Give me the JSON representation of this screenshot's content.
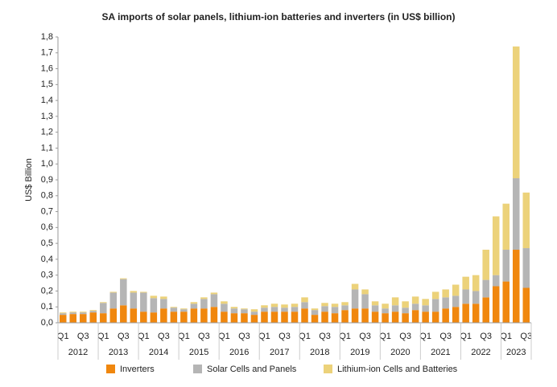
{
  "chart_data": {
    "type": "stacked_bar",
    "title": "SA imports of solar panels, lithium-ion batteries and inverters (in US$ billion)",
    "y_label": "US$ Billion",
    "categories": [
      "Q1",
      null,
      "Q3",
      null,
      "Q1",
      null,
      "Q3",
      null,
      "Q1",
      null,
      "Q3",
      null,
      "Q1",
      null,
      "Q3",
      null,
      "Q1",
      null,
      "Q3",
      null,
      "Q1",
      null,
      "Q3",
      null,
      "Q1",
      null,
      "Q3",
      null,
      "Q1",
      null,
      "Q3",
      null,
      "Q1",
      null,
      "Q3",
      null,
      "Q1",
      null,
      "Q3",
      null,
      "Q1",
      null,
      "Q3",
      null,
      "Q1",
      null,
      "Q3"
    ],
    "years": [
      "2012",
      "2013",
      "2014",
      "2015",
      "2016",
      "2017",
      "2018",
      "2019",
      "2020",
      "2021",
      "2022",
      "2023"
    ],
    "series": [
      {
        "name": "Inverters",
        "color": "#f0870e",
        "values": [
          0.05,
          0.055,
          0.055,
          0.065,
          0.06,
          0.09,
          0.11,
          0.09,
          0.07,
          0.065,
          0.09,
          0.07,
          0.07,
          0.09,
          0.09,
          0.1,
          0.07,
          0.06,
          0.06,
          0.05,
          0.07,
          0.07,
          0.07,
          0.07,
          0.09,
          0.05,
          0.07,
          0.06,
          0.08,
          0.09,
          0.09,
          0.07,
          0.06,
          0.07,
          0.06,
          0.08,
          0.07,
          0.07,
          0.09,
          0.1,
          0.12,
          0.12,
          0.16,
          0.23,
          0.26,
          0.46,
          0.22
        ]
      },
      {
        "name": "Solar Cells and Panels",
        "color": "#b5b5b5",
        "values": [
          0.01,
          0.01,
          0.01,
          0.01,
          0.065,
          0.1,
          0.165,
          0.1,
          0.12,
          0.09,
          0.06,
          0.025,
          0.015,
          0.03,
          0.06,
          0.08,
          0.05,
          0.03,
          0.025,
          0.02,
          0.025,
          0.03,
          0.025,
          0.03,
          0.04,
          0.03,
          0.035,
          0.04,
          0.03,
          0.12,
          0.09,
          0.04,
          0.03,
          0.04,
          0.035,
          0.04,
          0.04,
          0.08,
          0.07,
          0.07,
          0.09,
          0.08,
          0.11,
          0.07,
          0.2,
          0.45,
          0.25
        ]
      },
      {
        "name": "Lithium-ion Cells and Batteries",
        "color": "#ecd27a",
        "values": [
          0.005,
          0.005,
          0.005,
          0.005,
          0.005,
          0.005,
          0.005,
          0.01,
          0.005,
          0.015,
          0.015,
          0.005,
          0.005,
          0.01,
          0.01,
          0.01,
          0.015,
          0.01,
          0.005,
          0.015,
          0.015,
          0.02,
          0.02,
          0.02,
          0.03,
          0.01,
          0.02,
          0.02,
          0.02,
          0.035,
          0.03,
          0.025,
          0.03,
          0.05,
          0.04,
          0.045,
          0.04,
          0.045,
          0.05,
          0.07,
          0.08,
          0.1,
          0.19,
          0.37,
          0.29,
          0.83,
          0.35
        ]
      }
    ],
    "ylim": [
      0,
      1.8
    ],
    "yticks": [
      {
        "value": 0,
        "label": "0,0"
      },
      {
        "value": 0.1,
        "label": "0,1"
      },
      {
        "value": 0.2,
        "label": "0,2"
      },
      {
        "value": 0.3,
        "label": "0,3"
      },
      {
        "value": 0.4,
        "label": "0,4"
      },
      {
        "value": 0.5,
        "label": "0,5"
      },
      {
        "value": 0.6,
        "label": "0,6"
      },
      {
        "value": 0.7,
        "label": "0,7"
      },
      {
        "value": 0.8,
        "label": "0,8"
      },
      {
        "value": 0.9,
        "label": "0,9"
      },
      {
        "value": 1.0,
        "label": "1,0"
      },
      {
        "value": 1.1,
        "label": "1,1"
      },
      {
        "value": 1.2,
        "label": "1,2"
      },
      {
        "value": 1.3,
        "label": "1,3"
      },
      {
        "value": 1.4,
        "label": "1,4"
      },
      {
        "value": 1.5,
        "label": "1,5"
      },
      {
        "value": 1.6,
        "label": "1,6"
      },
      {
        "value": 1.7,
        "label": "1,7"
      },
      {
        "value": 1.8,
        "label": "1,8"
      }
    ],
    "grid": false,
    "legend": "bottom"
  }
}
